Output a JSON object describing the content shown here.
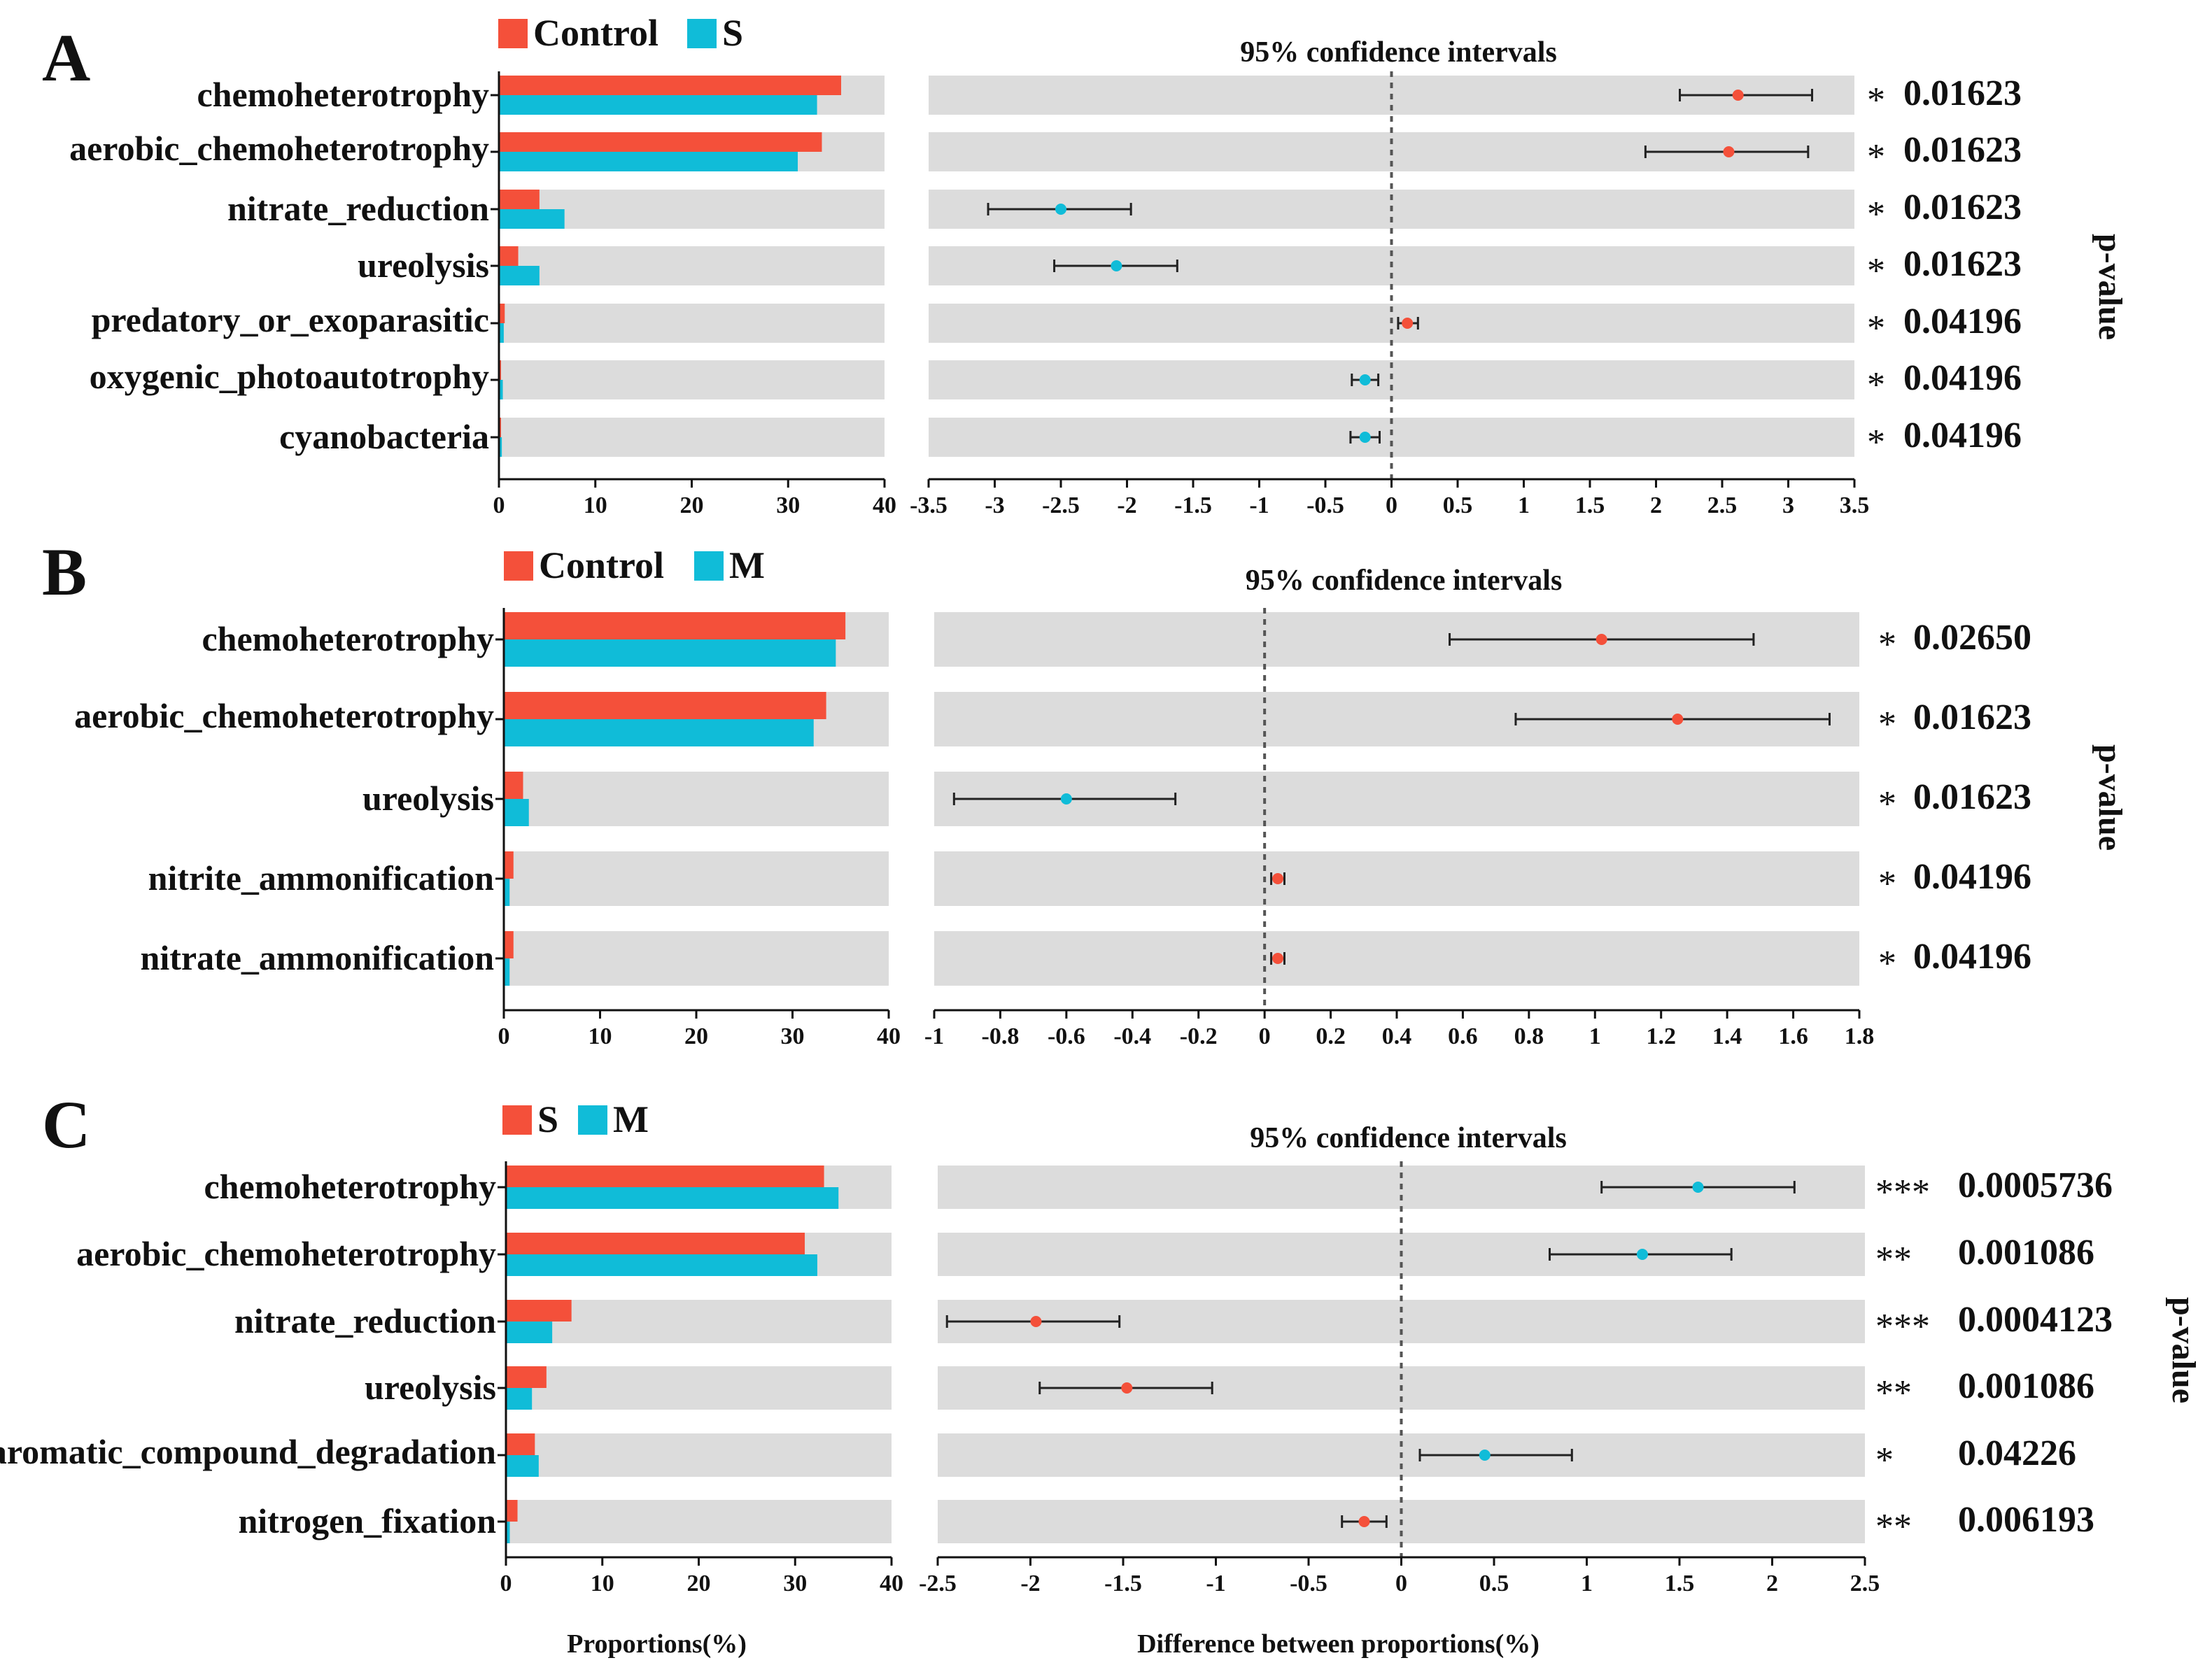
{
  "chart_data": [
    {
      "type": "bar",
      "panel_label": "A",
      "legend": [
        {
          "name": "Control",
          "color": "#f4503a"
        },
        {
          "name": "S",
          "color": "#10bcd8"
        }
      ],
      "categories": [
        "chemoheterotrophy",
        "aerobic_chemoheterotrophy",
        "nitrate_reduction",
        "ureolysis",
        "predatory_or_exoparasitic",
        "oxygenic_photoautotrophy",
        "cyanobacteria"
      ],
      "label_sizes": [
        "large",
        "small",
        "large",
        "large",
        "small",
        "small",
        "large"
      ],
      "series": [
        {
          "name": "Control",
          "values": [
            35.5,
            33.5,
            4.2,
            2.0,
            0.6,
            0.2,
            0.1
          ]
        },
        {
          "name": "S",
          "values": [
            33.0,
            31.0,
            6.8,
            4.2,
            0.5,
            0.4,
            0.3
          ]
        }
      ],
      "xlim": [
        0,
        40
      ],
      "xticks": [
        "0",
        "10",
        "20",
        "30",
        "40"
      ],
      "ci_title": "95% confidence intervals",
      "ci_xlim": [
        -3.5,
        3.5
      ],
      "ci_ticks": [
        "-3.5",
        "-3",
        "-2.5",
        "-2",
        "-1.5",
        "-1",
        "-0.5",
        "0",
        "0.5",
        "1",
        "1.5",
        "2",
        "2.5",
        "3",
        "3.5"
      ],
      "ci": [
        {
          "estimate": 2.62,
          "low": 2.18,
          "high": 3.18,
          "group": "Control"
        },
        {
          "estimate": 2.55,
          "low": 1.92,
          "high": 3.15,
          "group": "Control"
        },
        {
          "estimate": -2.5,
          "low": -3.05,
          "high": -1.97,
          "group": "S"
        },
        {
          "estimate": -2.08,
          "low": -2.55,
          "high": -1.62,
          "group": "S"
        },
        {
          "estimate": 0.12,
          "low": 0.05,
          "high": 0.2,
          "group": "Control"
        },
        {
          "estimate": -0.2,
          "low": -0.3,
          "high": -0.1,
          "group": "S"
        },
        {
          "estimate": -0.2,
          "low": -0.31,
          "high": -0.09,
          "group": "S"
        }
      ],
      "stars": [
        "*",
        "*",
        "*",
        "*",
        "*",
        "*",
        "*"
      ],
      "p_values": [
        "0.01623",
        "0.01623",
        "0.01623",
        "0.01623",
        "0.04196",
        "0.04196",
        "0.04196"
      ],
      "p_axis_title": "p-value"
    },
    {
      "type": "bar",
      "panel_label": "B",
      "legend": [
        {
          "name": "Control",
          "color": "#f4503a"
        },
        {
          "name": "M",
          "color": "#10bcd8"
        }
      ],
      "categories": [
        "chemoheterotrophy",
        "aerobic_chemoheterotrophy",
        "ureolysis",
        "nitrite_ammonification",
        "nitrate_ammonification"
      ],
      "label_sizes": [
        "large",
        "small",
        "large",
        "large",
        "large"
      ],
      "series": [
        {
          "name": "Control",
          "values": [
            35.5,
            33.5,
            2.0,
            1.0,
            1.0
          ]
        },
        {
          "name": "M",
          "values": [
            34.5,
            32.2,
            2.6,
            0.6,
            0.6
          ]
        }
      ],
      "xlim": [
        0,
        40
      ],
      "xticks": [
        "0",
        "10",
        "20",
        "30",
        "40"
      ],
      "ci_title": "95% confidence intervals",
      "ci_xlim": [
        -1,
        1.8
      ],
      "ci_ticks": [
        "-1",
        "-0.8",
        "-0.6",
        "-0.4",
        "-0.2",
        "0",
        "0.2",
        "0.4",
        "0.6",
        "0.8",
        "1",
        "1.2",
        "1.4",
        "1.6",
        "1.8"
      ],
      "ci": [
        {
          "estimate": 1.02,
          "low": 0.56,
          "high": 1.48,
          "group": "Control"
        },
        {
          "estimate": 1.25,
          "low": 0.76,
          "high": 1.71,
          "group": "Control"
        },
        {
          "estimate": -0.6,
          "low": -0.94,
          "high": -0.27,
          "group": "M"
        },
        {
          "estimate": 0.04,
          "low": 0.02,
          "high": 0.06,
          "group": "Control"
        },
        {
          "estimate": 0.04,
          "low": 0.02,
          "high": 0.06,
          "group": "Control"
        }
      ],
      "stars": [
        "*",
        "*",
        "*",
        "*",
        "*"
      ],
      "p_values": [
        "0.02650",
        "0.01623",
        "0.01623",
        "0.04196",
        "0.04196"
      ],
      "p_axis_title": "p-value"
    },
    {
      "type": "bar",
      "panel_label": "C",
      "legend": [
        {
          "name": "S",
          "color": "#f4503a"
        },
        {
          "name": "M",
          "color": "#10bcd8"
        }
      ],
      "categories": [
        "chemoheterotrophy",
        "aerobic_chemoheterotrophy",
        "nitrate_reduction",
        "ureolysis",
        "aromatic_compound_degradation",
        "nitrogen_fixation"
      ],
      "label_sizes": [
        "large",
        "large",
        "large",
        "large",
        "small",
        "large"
      ],
      "series": [
        {
          "name": "S",
          "values": [
            33.0,
            31.0,
            6.8,
            4.2,
            3.0,
            1.2
          ]
        },
        {
          "name": "M",
          "values": [
            34.5,
            32.3,
            4.8,
            2.7,
            3.4,
            0.4
          ]
        }
      ],
      "xlim": [
        0,
        40
      ],
      "xticks": [
        "0",
        "10",
        "20",
        "30",
        "40"
      ],
      "xlabel": "Proportions(%)",
      "ci_title": "95% confidence intervals",
      "ci_xlim": [
        -2.5,
        2.5
      ],
      "ci_ticks": [
        "-2.5",
        "-2",
        "-1.5",
        "-1",
        "-0.5",
        "0",
        "0.5",
        "1",
        "1.5",
        "2",
        "2.5"
      ],
      "ci_xlabel": "Difference between proportions(%)",
      "ci": [
        {
          "estimate": 1.6,
          "low": 1.08,
          "high": 2.12,
          "group": "M"
        },
        {
          "estimate": 1.3,
          "low": 0.8,
          "high": 1.78,
          "group": "M"
        },
        {
          "estimate": -1.97,
          "low": -2.45,
          "high": -1.52,
          "group": "S"
        },
        {
          "estimate": -1.48,
          "low": -1.95,
          "high": -1.02,
          "group": "S"
        },
        {
          "estimate": 0.45,
          "low": 0.1,
          "high": 0.92,
          "group": "M"
        },
        {
          "estimate": -0.2,
          "low": -0.32,
          "high": -0.08,
          "group": "S"
        }
      ],
      "stars": [
        "***",
        "**",
        "***",
        "**",
        "*",
        "**"
      ],
      "p_values": [
        "0.0005736",
        "0.001086",
        "0.0004123",
        "0.001086",
        "0.04226",
        "0.006193"
      ],
      "p_axis_title": "p-value"
    }
  ]
}
